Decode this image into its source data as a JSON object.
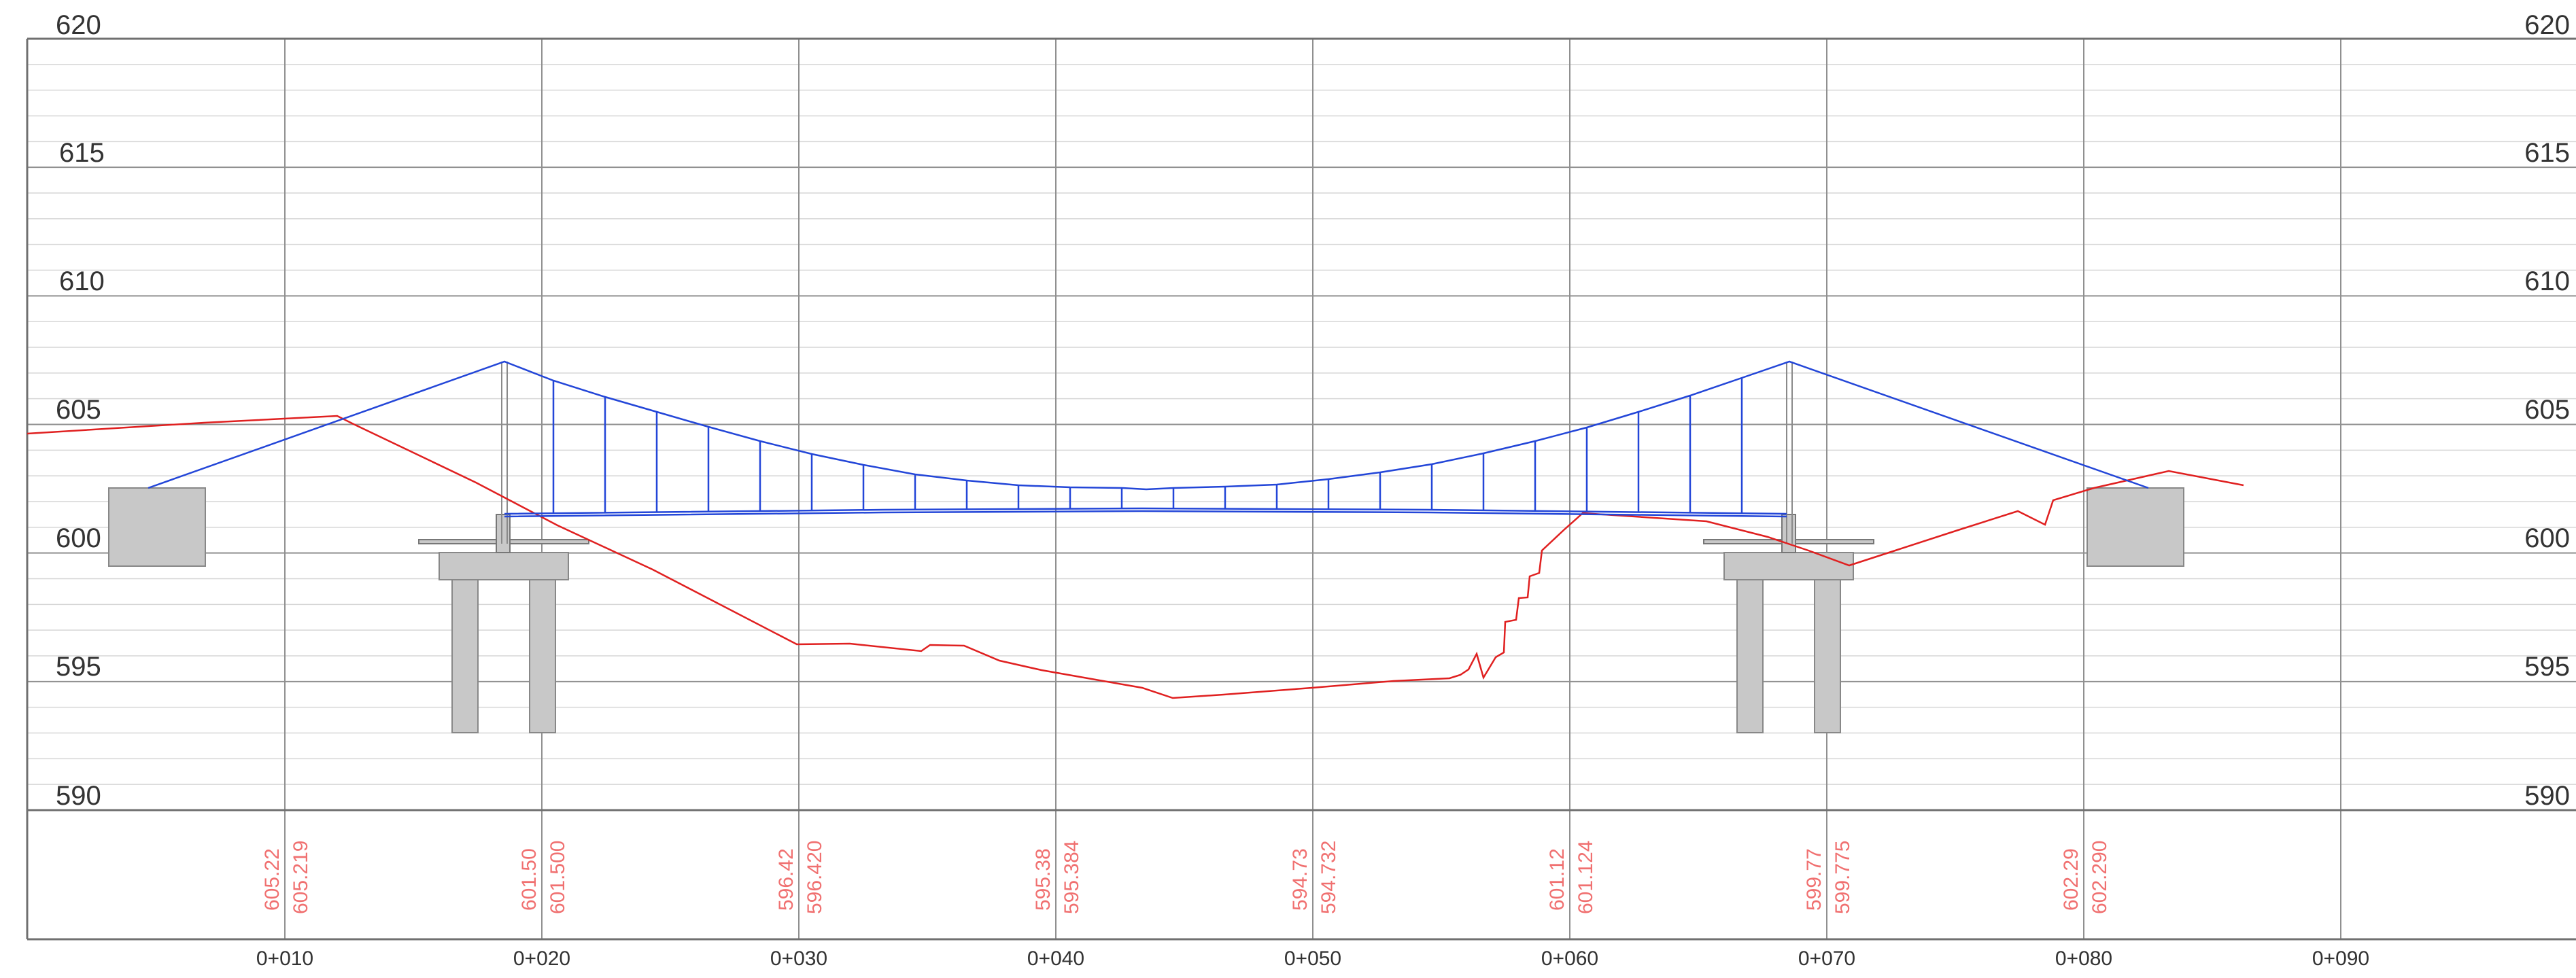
{
  "elevation_labels_left": [
    "620",
    "615",
    "610",
    "605",
    "600",
    "595",
    "590"
  ],
  "elevation_labels_right": [
    "620",
    "615",
    "610",
    "605",
    "600",
    "595",
    "590"
  ],
  "elevation_values": [
    620,
    615,
    610,
    605,
    600,
    595,
    590
  ],
  "station_labels": [
    "0+010",
    "0+020",
    "0+030",
    "0+040",
    "0+050",
    "0+060",
    "0+070",
    "0+080",
    "0+090"
  ],
  "station_values": [
    10,
    20,
    30,
    40,
    50,
    60,
    70,
    80,
    90
  ],
  "ground_readouts": [
    {
      "station": "0+010",
      "a": "605.22",
      "b": "605.219"
    },
    {
      "station": "0+020",
      "a": "601.50",
      "b": "601.500"
    },
    {
      "station": "0+030",
      "a": "596.42",
      "b": "596.420"
    },
    {
      "station": "0+040",
      "a": "595.38",
      "b": "595.384"
    },
    {
      "station": "0+050",
      "a": "594.73",
      "b": "594.732"
    },
    {
      "station": "0+060",
      "a": "601.12",
      "b": "601.124"
    },
    {
      "station": "0+070",
      "a": "599.77",
      "b": "599.775"
    },
    {
      "station": "0+080",
      "a": "602.29",
      "b": "602.290"
    }
  ],
  "colors": {
    "grid_major": "#909090",
    "grid_minor": "#d6d6d6",
    "text": "#333333",
    "readout": "#f07070",
    "ground_line": "#e02020",
    "bridge": "#2346d8",
    "concrete": "#c8c8c8",
    "concrete_edge": "#888888"
  }
}
